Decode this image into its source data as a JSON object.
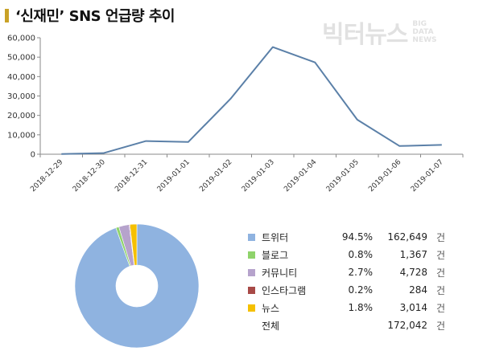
{
  "page": {
    "title": "‘신재민’ SNS 언급량 추이"
  },
  "logo": {
    "main": "빅터뉴스",
    "sub": [
      "BIG",
      "DATA",
      "NEWS"
    ]
  },
  "chart_data": [
    {
      "type": "line",
      "title": "",
      "x": [
        "2018-12-29",
        "2018-12-30",
        "2018-12-31",
        "2019-01-01",
        "2019-01-02",
        "2019-01-03",
        "2019-01-04",
        "2019-01-05",
        "2019-01-06",
        "2019-01-07"
      ],
      "series": [
        {
          "values": [
            100,
            600,
            6800,
            6300,
            28500,
            55200,
            47300,
            17800,
            4200,
            4800
          ]
        }
      ],
      "y_ticks": [
        "0",
        "10,000",
        "20,000",
        "30,000",
        "40,000",
        "50,000",
        "60,000"
      ],
      "ylim": [
        0,
        60000
      ],
      "grid": false,
      "colors": {
        "line": "#5b80a8"
      }
    },
    {
      "type": "pie",
      "donut": true,
      "slices": [
        {
          "label": "트위터",
          "pct": "94.5%",
          "count": "162,649",
          "unit": "건",
          "value": 94.5,
          "color": "#8fb3e0"
        },
        {
          "label": "블로그",
          "pct": "0.8%",
          "count": "1,367",
          "unit": "건",
          "value": 0.8,
          "color": "#8fd36b"
        },
        {
          "label": "커뮤니티",
          "pct": "2.7%",
          "count": "4,728",
          "unit": "건",
          "value": 2.7,
          "color": "#b6a3cc"
        },
        {
          "label": "인스타그램",
          "pct": "0.2%",
          "count": "284",
          "unit": "건",
          "value": 0.2,
          "color": "#a84a47"
        },
        {
          "label": "뉴스",
          "pct": "1.8%",
          "count": "3,014",
          "unit": "건",
          "value": 1.8,
          "color": "#f5c000"
        }
      ],
      "total": {
        "label": "전체",
        "count": "172,042",
        "unit": "건"
      }
    }
  ]
}
